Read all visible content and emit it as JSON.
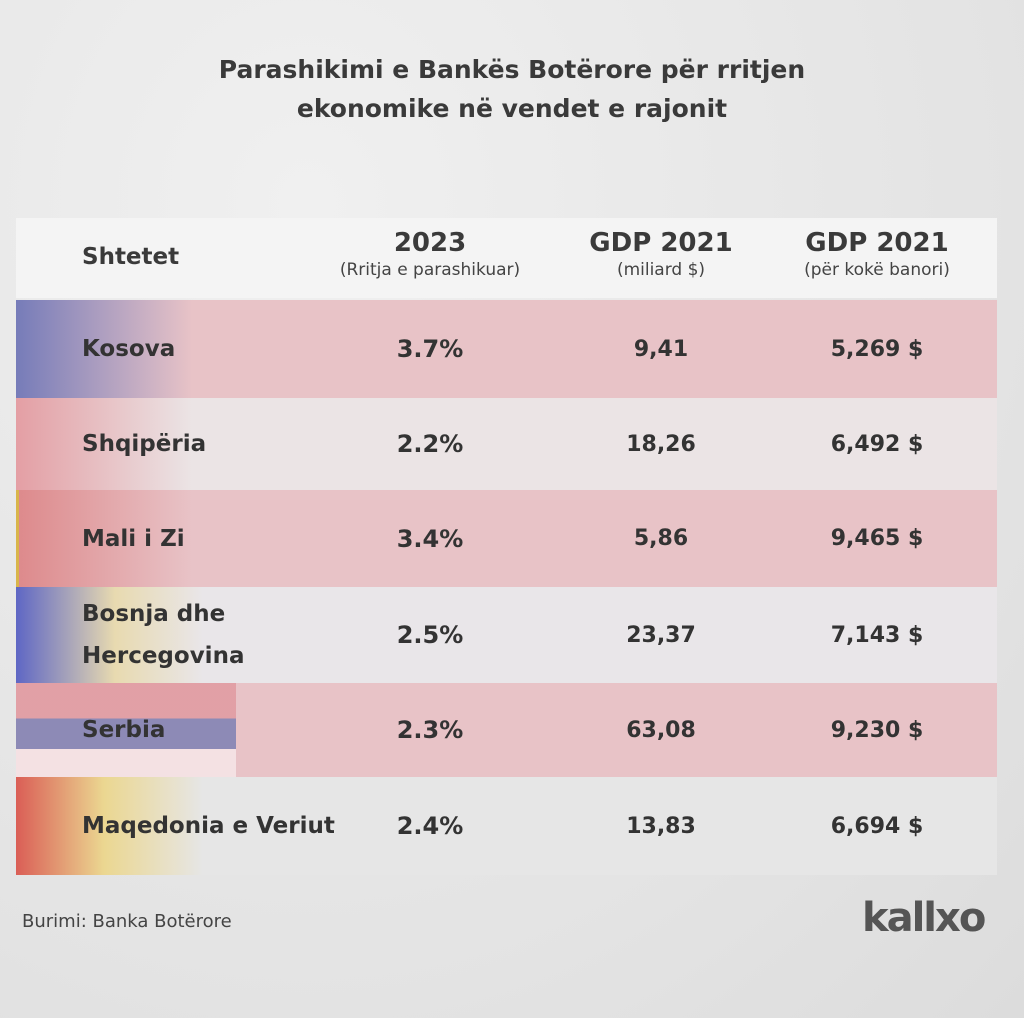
{
  "header": {
    "title_lines": [
      "Parashikimi e Bankës Botërore për rritjen",
      "ekonomike në vendet e rajonit"
    ]
  },
  "table": {
    "columns": [
      {
        "title": "Shtetet",
        "subtitle": null
      },
      {
        "title": "2023",
        "subtitle": "(Rritja e parashikuar)"
      },
      {
        "title": "GDP 2021",
        "subtitle": "(miliard $)"
      },
      {
        "title": "GDP 2021",
        "subtitle": "(për kokë banori)"
      }
    ],
    "rows": [
      [
        "Kosova",
        "3.7%",
        "9,41",
        "5,269 $"
      ],
      [
        "Shqipëria",
        "2.2%",
        "18,26",
        "6,492 $"
      ],
      [
        "Mali i Zi",
        "3.4%",
        "5,86",
        "9,465 $"
      ],
      [
        "Bosnja dhe Hercegovina",
        "2.5%",
        "23,37",
        "7,143 $"
      ],
      [
        "Serbia",
        "2.3%",
        "63,08",
        "9,230 $"
      ],
      [
        "Maqedonia e Veriut",
        "2.4%",
        "13,83",
        "6,694 $"
      ]
    ]
  },
  "footer": {
    "source": "Burimi: Banka Botërore",
    "brand": "kallxo"
  }
}
